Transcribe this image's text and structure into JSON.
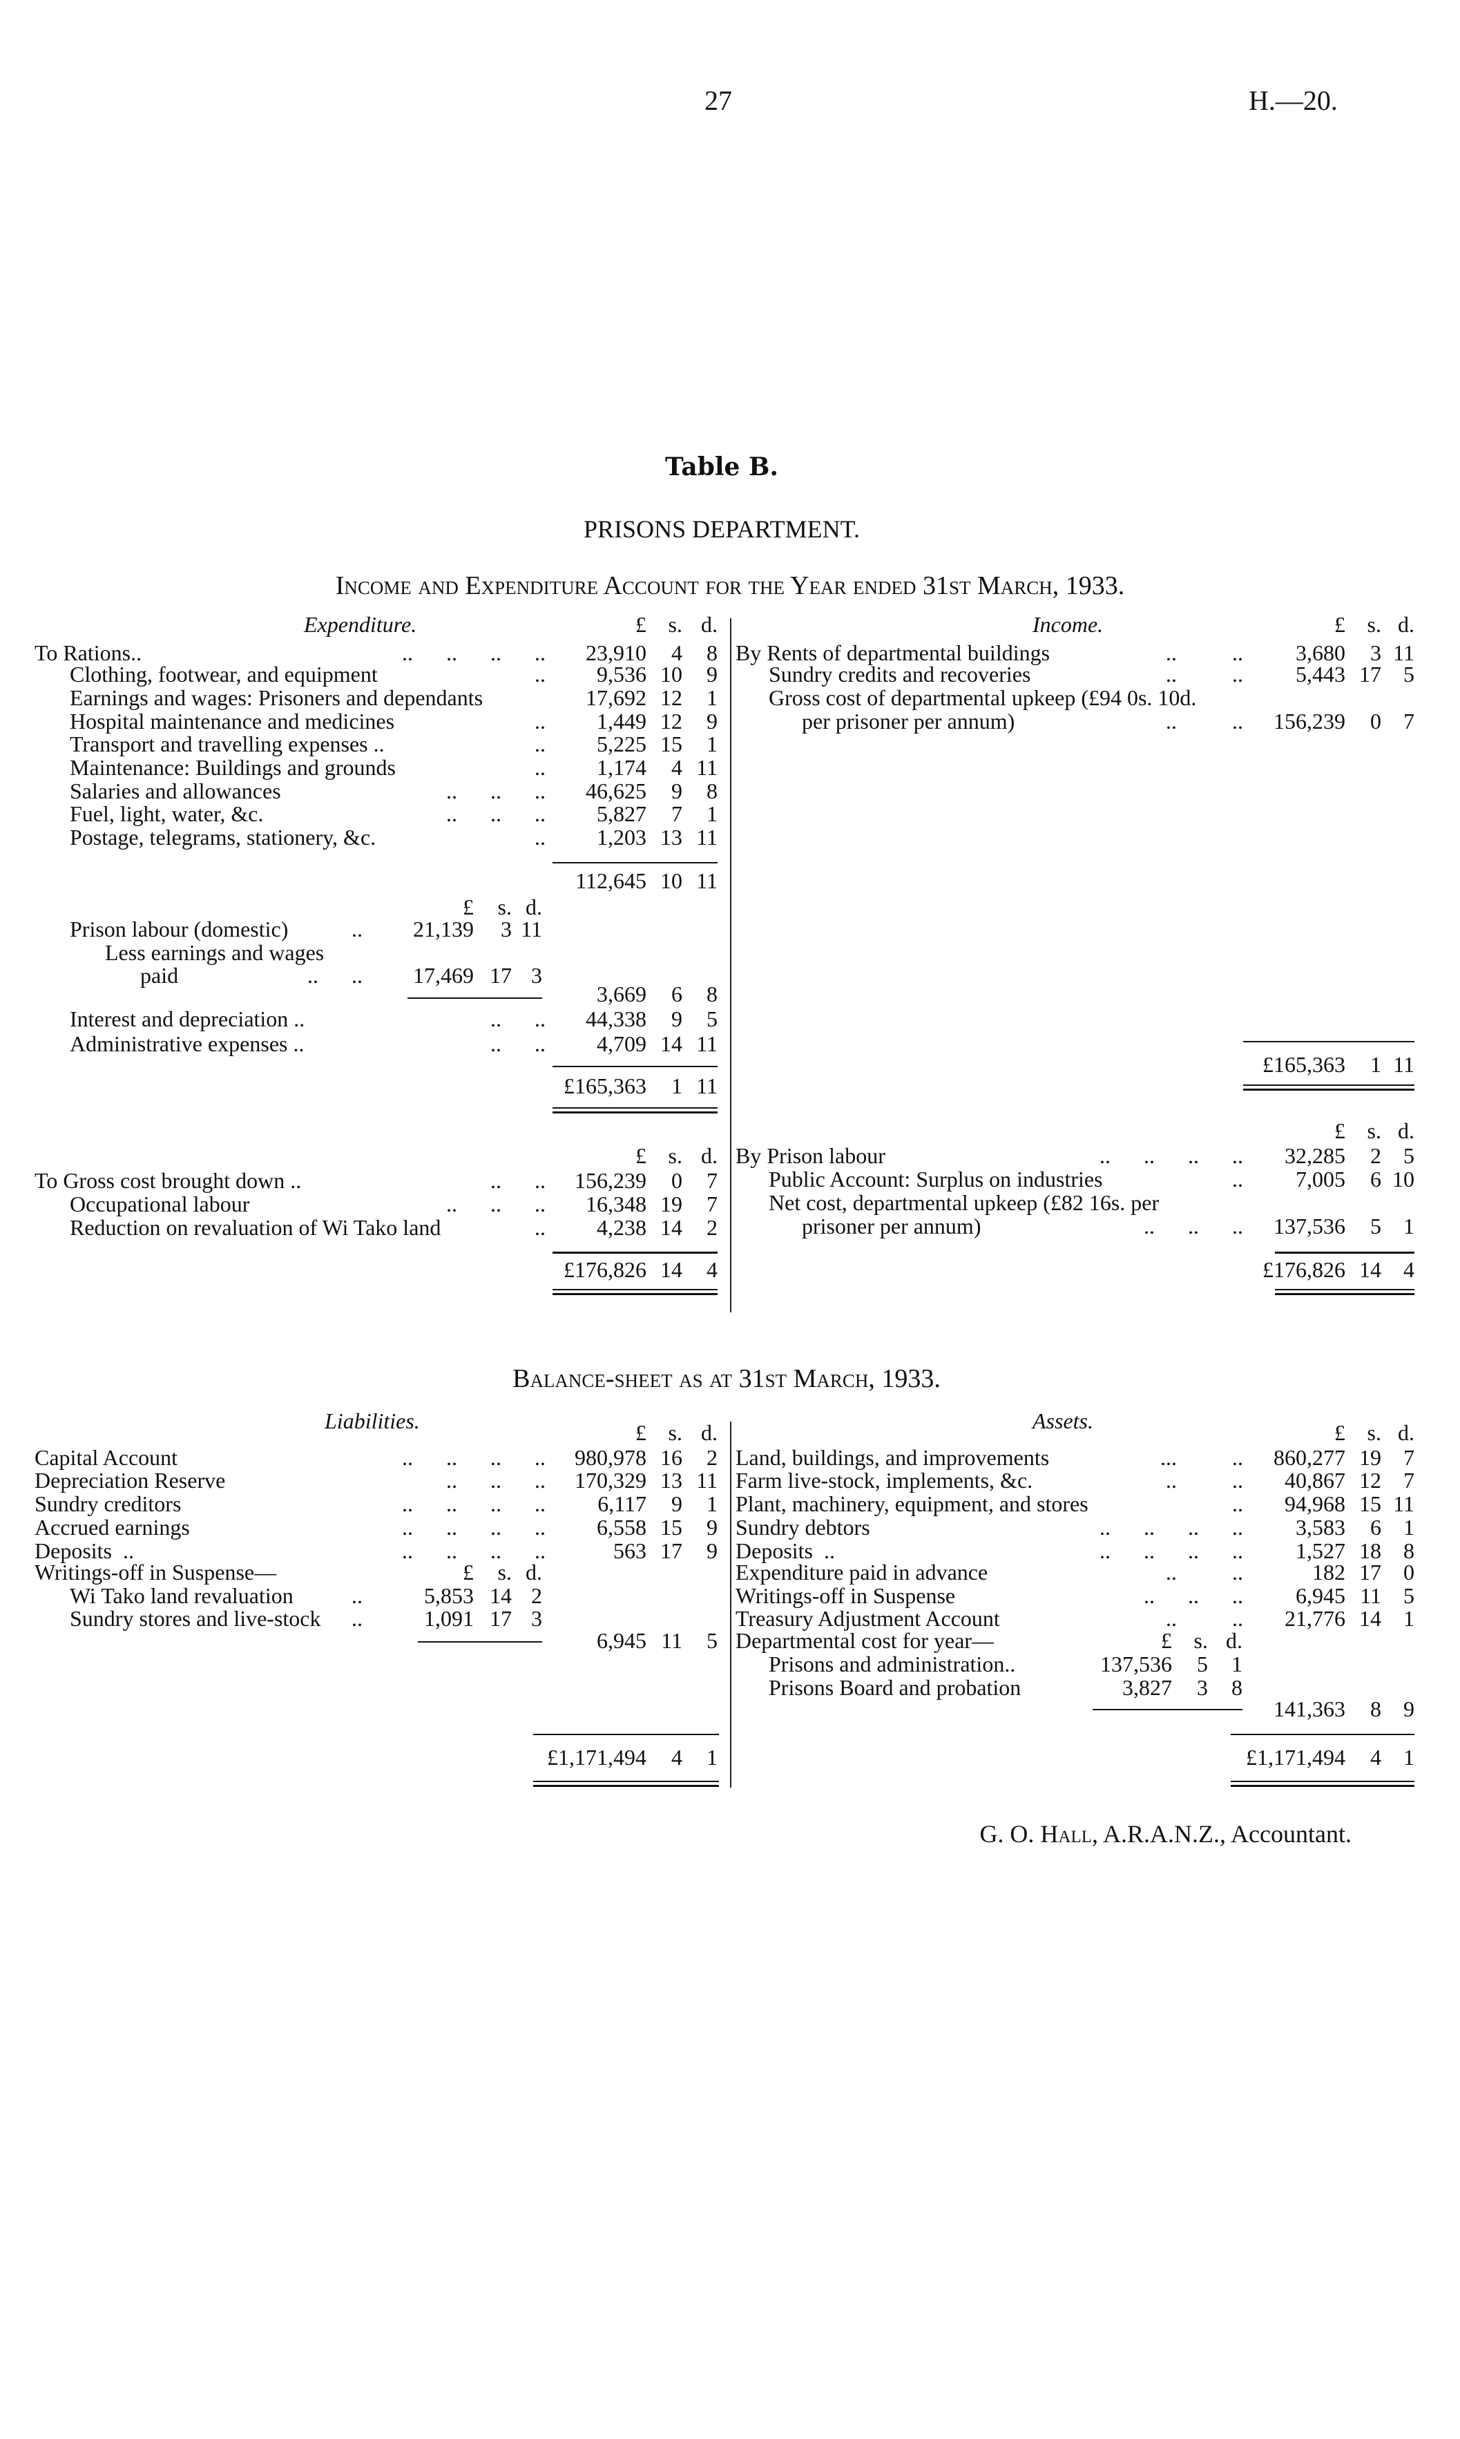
{
  "page": {
    "number": "27",
    "ref": "H.—20."
  },
  "table_label": "Table B.",
  "department": "PRISONS DEPARTMENT.",
  "ie": {
    "title": "Income and Expenditure Account for the Year ended 31st March, 1933.",
    "cols": {
      "pounds": "£",
      "s": "s.",
      "d": "d."
    },
    "expenditure": {
      "heading": "Expenditure.",
      "rows": [
        {
          "label": "To Rations..",
          "leader": "..      ..      ..      ..",
          "pounds": "23,910",
          "s": "4",
          "d": "8"
        },
        {
          "label": "Clothing, footwear, and equipment",
          "leader": "..",
          "pounds": "9,536",
          "s": "10",
          "d": "9"
        },
        {
          "label": "Earnings and wages: Prisoners and dependants",
          "pounds": "17,692",
          "s": "12",
          "d": "1"
        },
        {
          "label": "Hospital maintenance and medicines",
          "leader": "..",
          "pounds": "1,449",
          "s": "12",
          "d": "9"
        },
        {
          "label": "Transport and travelling expenses ..",
          "leader": "..",
          "pounds": "5,225",
          "s": "15",
          "d": "1"
        },
        {
          "label": "Maintenance: Buildings and grounds",
          "leader": "..",
          "pounds": "1,174",
          "s": "4",
          "d": "11"
        },
        {
          "label": "Salaries and allowances",
          "leader": "..      ..      ..",
          "pounds": "46,625",
          "s": "9",
          "d": "8"
        },
        {
          "label": "Fuel, light, water, &c.",
          "leader": "..      ..      ..",
          "pounds": "5,827",
          "s": "7",
          "d": "1"
        },
        {
          "label": "Postage, telegrams, stationery, &c.",
          "leader": "..",
          "pounds": "1,203",
          "s": "13",
          "d": "11"
        },
        {
          "pounds": "112,645",
          "s": "10",
          "d": "11"
        },
        {
          "sub_pounds": "£",
          "sub_s": "s.",
          "sub_d": "d."
        },
        {
          "label": "Prison labour (domestic)",
          "leader": "..",
          "sub_pounds": "21,139",
          "sub_s": "3",
          "sub_d": "11"
        },
        {
          "label": "Less earnings and wages"
        },
        {
          "label": "paid",
          "leader": "..      ..",
          "sub_pounds": "17,469",
          "sub_s": "17",
          "sub_d": "3"
        },
        {
          "pounds": "3,669",
          "s": "6",
          "d": "8"
        },
        {
          "label": "Interest and depreciation ..",
          "leader": "..      ..",
          "pounds": "44,338",
          "s": "9",
          "d": "5"
        },
        {
          "label": "Administrative expenses ..",
          "leader": "..      ..",
          "pounds": "4,709",
          "s": "14",
          "d": "11"
        },
        {
          "pounds": "£165,363",
          "s": "1",
          "d": "11"
        }
      ]
    },
    "income": {
      "heading": "Income.",
      "rows": [
        {
          "label": "By Rents of departmental buildings",
          "leader": "..          ..",
          "pounds": "3,680",
          "s": "3",
          "d": "11"
        },
        {
          "label": "Sundry credits and recoveries",
          "leader": "..          ..",
          "pounds": "5,443",
          "s": "17",
          "d": "5"
        },
        {
          "label": "Gross cost of departmental upkeep (£94 0s. 10d."
        },
        {
          "label": "per prisoner per annum)",
          "leader": "..          ..",
          "pounds": "156,239",
          "s": "0",
          "d": "7"
        },
        {
          "pounds": "£165,363",
          "s": "1",
          "d": "11"
        }
      ]
    },
    "second_left": {
      "rows": [
        {
          "pounds": "£",
          "s": "s.",
          "d": "d."
        },
        {
          "label": "To Gross cost brought down ..",
          "leader": "..      ..",
          "pounds": "156,239",
          "s": "0",
          "d": "7"
        },
        {
          "label": "Occupational labour",
          "leader": "..      ..      ..",
          "pounds": "16,348",
          "s": "19",
          "d": "7"
        },
        {
          "label": "Reduction on revaluation of Wi Tako land",
          "leader": "..",
          "pounds": "4,238",
          "s": "14",
          "d": "2"
        },
        {
          "pounds": "£176,826",
          "s": "14",
          "d": "4"
        }
      ]
    },
    "second_right": {
      "rows": [
        {
          "pounds": "£",
          "s": "s.",
          "d": "d."
        },
        {
          "label": "By Prison labour",
          "leader": "..      ..      ..      ..",
          "pounds": "32,285",
          "s": "2",
          "d": "5"
        },
        {
          "label": "Public Account: Surplus on industries",
          "leader": "..",
          "pounds": "7,005",
          "s": "6",
          "d": "10"
        },
        {
          "label": "Net cost, departmental upkeep (£82 16s. per"
        },
        {
          "label": "prisoner per annum)",
          "leader": "..      ..      ..",
          "pounds": "137,536",
          "s": "5",
          "d": "1"
        },
        {
          "pounds": "£176,826",
          "s": "14",
          "d": "4"
        }
      ]
    }
  },
  "balance": {
    "title": "Balance-sheet as at 31st March, 1933.",
    "liabilities": {
      "heading": "Liabilities.",
      "rows": [
        {
          "pounds": "£",
          "s": "s.",
          "d": "d."
        },
        {
          "label": "Capital Account",
          "leader": "..      ..      ..      ..",
          "pounds": "980,978",
          "s": "16",
          "d": "2"
        },
        {
          "label": "Depreciation Reserve",
          "leader": "..      ..      ..",
          "pounds": "170,329",
          "s": "13",
          "d": "11"
        },
        {
          "label": "Sundry creditors",
          "leader": "..      ..      ..      ..",
          "pounds": "6,117",
          "s": "9",
          "d": "1"
        },
        {
          "label": "Accrued earnings",
          "leader": "..      ..      ..      ..",
          "pounds": "6,558",
          "s": "15",
          "d": "9"
        },
        {
          "label": "Deposits  ..",
          "leader": "..      ..      ..      ..",
          "pounds": "563",
          "s": "17",
          "d": "9"
        },
        {
          "label": "Writings-off in Suspense—",
          "sub_pounds": "£",
          "sub_s": "s.",
          "sub_d": "d."
        },
        {
          "label": "Wi Tako land revaluation",
          "leader": "..",
          "sub_pounds": "5,853",
          "sub_s": "14",
          "sub_d": "2"
        },
        {
          "label": "Sundry stores and live-stock",
          "leader": "..",
          "sub_pounds": "1,091",
          "sub_s": "17",
          "sub_d": "3"
        },
        {
          "pounds": "6,945",
          "s": "11",
          "d": "5"
        },
        {
          "pounds": "£1,171,494",
          "s": "4",
          "d": "1"
        }
      ]
    },
    "assets": {
      "heading": "Assets.",
      "rows": [
        {
          "pounds": "£",
          "s": "s.",
          "d": "d."
        },
        {
          "label": "Land, buildings, and improvements",
          "leader": "...          ..",
          "pounds": "860,277",
          "s": "19",
          "d": "7"
        },
        {
          "label": "Farm live-stock, implements, &c.",
          "leader": "..          ..",
          "pounds": "40,867",
          "s": "12",
          "d": "7"
        },
        {
          "label": "Plant, machinery, equipment, and stores",
          "leader": "..",
          "pounds": "94,968",
          "s": "15",
          "d": "11"
        },
        {
          "label": "Sundry debtors",
          "leader": "..      ..      ..      ..",
          "pounds": "3,583",
          "s": "6",
          "d": "1"
        },
        {
          "label": "Deposits  ..",
          "leader": "..      ..      ..      ..",
          "pounds": "1,527",
          "s": "18",
          "d": "8"
        },
        {
          "label": "Expenditure paid in advance",
          "leader": "..          ..",
          "pounds": "182",
          "s": "17",
          "d": "0"
        },
        {
          "label": "Writings-off in Suspense",
          "leader": "..      ..      ..",
          "pounds": "6,945",
          "s": "11",
          "d": "5"
        },
        {
          "label": "Treasury Adjustment Account",
          "leader": "..          ..",
          "pounds": "21,776",
          "s": "14",
          "d": "1"
        },
        {
          "label": "Departmental cost for year—",
          "sub_pounds": "£",
          "sub_s": "s.",
          "sub_d": "d."
        },
        {
          "label": "Prisons and administration..",
          "sub_pounds": "137,536",
          "sub_s": "5",
          "sub_d": "1"
        },
        {
          "label": "Prisons Board and probation",
          "sub_pounds": "3,827",
          "sub_s": "3",
          "sub_d": "8"
        },
        {
          "pounds": "141,363",
          "s": "8",
          "d": "9"
        },
        {
          "pounds": "£1,171,494",
          "s": "4",
          "d": "1"
        }
      ]
    }
  },
  "signature": {
    "name": "G. O. Hall",
    "title": ", A.R.A.N.Z., Accountant."
  }
}
